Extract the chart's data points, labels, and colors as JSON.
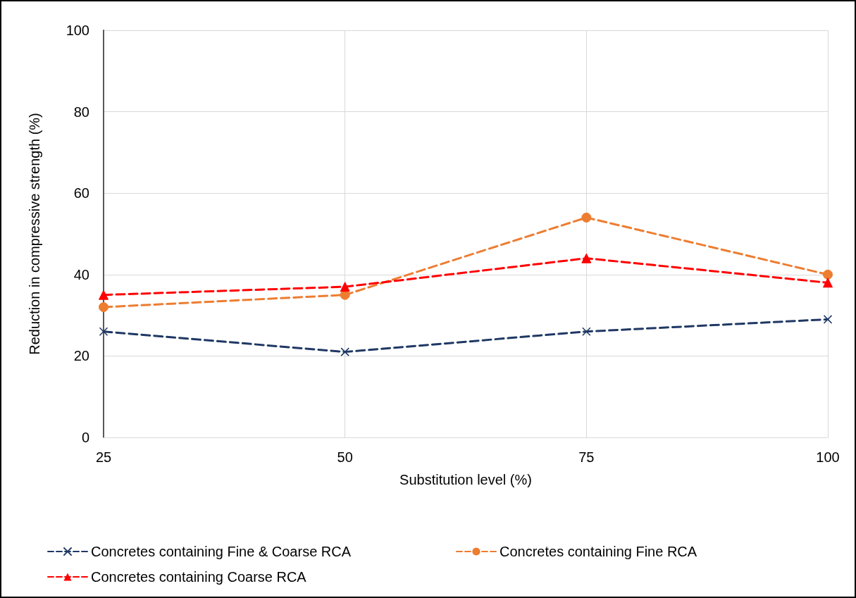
{
  "chart_data": {
    "type": "line",
    "xlabel": "Substitution level (%)",
    "ylabel": "Reduction in compressive strength (%)",
    "x": [
      25,
      50,
      75,
      100
    ],
    "series": [
      {
        "name": "Concretes containing Fine & Coarse RCA",
        "color": "#1f3864",
        "values": [
          26,
          21,
          26,
          29
        ],
        "marker": "cross"
      },
      {
        "name": "Concretes containing Fine RCA",
        "color": "#ed7d31",
        "values": [
          32,
          35,
          54,
          40
        ],
        "marker": "circle"
      },
      {
        "name": "Concretes containing Coarse RCA",
        "color": "#ff0000",
        "values": [
          35,
          37,
          44,
          38
        ],
        "marker": "triangle"
      }
    ],
    "xlim": [
      25,
      100
    ],
    "xticks": [
      25,
      50,
      75,
      100
    ],
    "ylim": [
      0,
      100
    ],
    "yticks": [
      0,
      20,
      40,
      60,
      80,
      100
    ],
    "grid": true,
    "legend": "bottom",
    "line_style": "dashed"
  }
}
